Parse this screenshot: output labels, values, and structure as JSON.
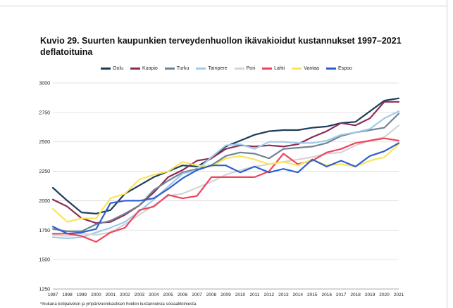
{
  "title": "Kuvio 29. Suurten kaupunkien terveydenhuollon ikävakioidut kustannukset 1997–2021 deflatoituina",
  "footnote": "*mukana kotipalvelun ja ympärivuorokautisen hoidon kustannuksia sosiaalitoimesta.",
  "chart_data": {
    "type": "line",
    "title": "Kuvio 29. Suurten kaupunkien terveydenhuollon ikävakioidut kustannukset 1997–2021 deflatoituina",
    "xlabel": "",
    "ylabel": "",
    "x": [
      "1997",
      "1998",
      "1999",
      "2000",
      "2001",
      "2002",
      "2003",
      "2004",
      "2005",
      "2006",
      "2007",
      "2008",
      "2009",
      "2010",
      "2011",
      "2012",
      "2013",
      "2014",
      "2015",
      "2016",
      "2017",
      "2018",
      "2019",
      "2020",
      "2021"
    ],
    "ylim": [
      1250,
      3000
    ],
    "yticks": [
      1250,
      1500,
      1750,
      2000,
      2250,
      2500,
      2750,
      3000
    ],
    "grid": "horizontal",
    "legend_position": "top",
    "series": [
      {
        "name": "Oulu",
        "color": "#1c3d5a",
        "values": [
          2110,
          2000,
          1900,
          1890,
          1920,
          2060,
          2130,
          2200,
          2250,
          2300,
          2290,
          2360,
          2460,
          2510,
          2560,
          2590,
          2600,
          2600,
          2620,
          2630,
          2660,
          2670,
          2760,
          2850,
          2870
        ]
      },
      {
        "name": "Kuopio",
        "color": "#8c2b57",
        "values": [
          2010,
          1950,
          1850,
          1810,
          1820,
          1880,
          1960,
          2070,
          2200,
          2260,
          2340,
          2360,
          2440,
          2470,
          2460,
          2470,
          2460,
          2480,
          2540,
          2590,
          2660,
          2640,
          2700,
          2840,
          2840
        ]
      },
      {
        "name": "Turku",
        "color": "#6f8394",
        "values": [
          1760,
          1740,
          1740,
          1800,
          1830,
          1890,
          1960,
          2090,
          2170,
          2240,
          2270,
          2300,
          2380,
          2410,
          2400,
          2360,
          2440,
          2450,
          2460,
          2490,
          2550,
          2580,
          2600,
          2620,
          2740
        ]
      },
      {
        "name": "Tampere",
        "color": "#9fcbe8",
        "values": [
          1690,
          1680,
          1690,
          1730,
          1770,
          1820,
          1910,
          2010,
          2120,
          2230,
          2260,
          2370,
          2470,
          2480,
          2440,
          2500,
          2500,
          2490,
          2490,
          2510,
          2560,
          2580,
          2610,
          2700,
          2760
        ]
      },
      {
        "name": "Pori",
        "color": "#d4d4d4",
        "values": [
          1710,
          1700,
          1720,
          1710,
          1730,
          1800,
          1880,
          1960,
          2040,
          2060,
          2110,
          2160,
          2220,
          2260,
          2290,
          2310,
          2330,
          2350,
          2370,
          2400,
          2410,
          2470,
          2510,
          2540,
          2640
        ]
      },
      {
        "name": "Lahti",
        "color": "#f0445e",
        "values": [
          1720,
          1720,
          1700,
          1650,
          1730,
          1770,
          1920,
          1950,
          2050,
          2020,
          2040,
          2200,
          2200,
          2200,
          2200,
          2250,
          2400,
          2310,
          2340,
          2410,
          2440,
          2490,
          2510,
          2530,
          2510
        ]
      },
      {
        "name": "Vantaa",
        "color": "#fbe45a",
        "values": [
          1930,
          1820,
          1850,
          1850,
          2020,
          2060,
          2180,
          2220,
          2250,
          2330,
          2300,
          2290,
          2360,
          2380,
          2350,
          2310,
          2330,
          2300,
          2350,
          2300,
          2310,
          2290,
          2340,
          2370,
          2480
        ]
      },
      {
        "name": "Espoo",
        "color": "#2d5fd1",
        "values": [
          1780,
          1720,
          1730,
          1760,
          1980,
          2000,
          2000,
          2020,
          2100,
          2190,
          2260,
          2300,
          2300,
          2240,
          2290,
          2240,
          2270,
          2240,
          2350,
          2290,
          2340,
          2290,
          2380,
          2420,
          2490
        ]
      }
    ]
  }
}
